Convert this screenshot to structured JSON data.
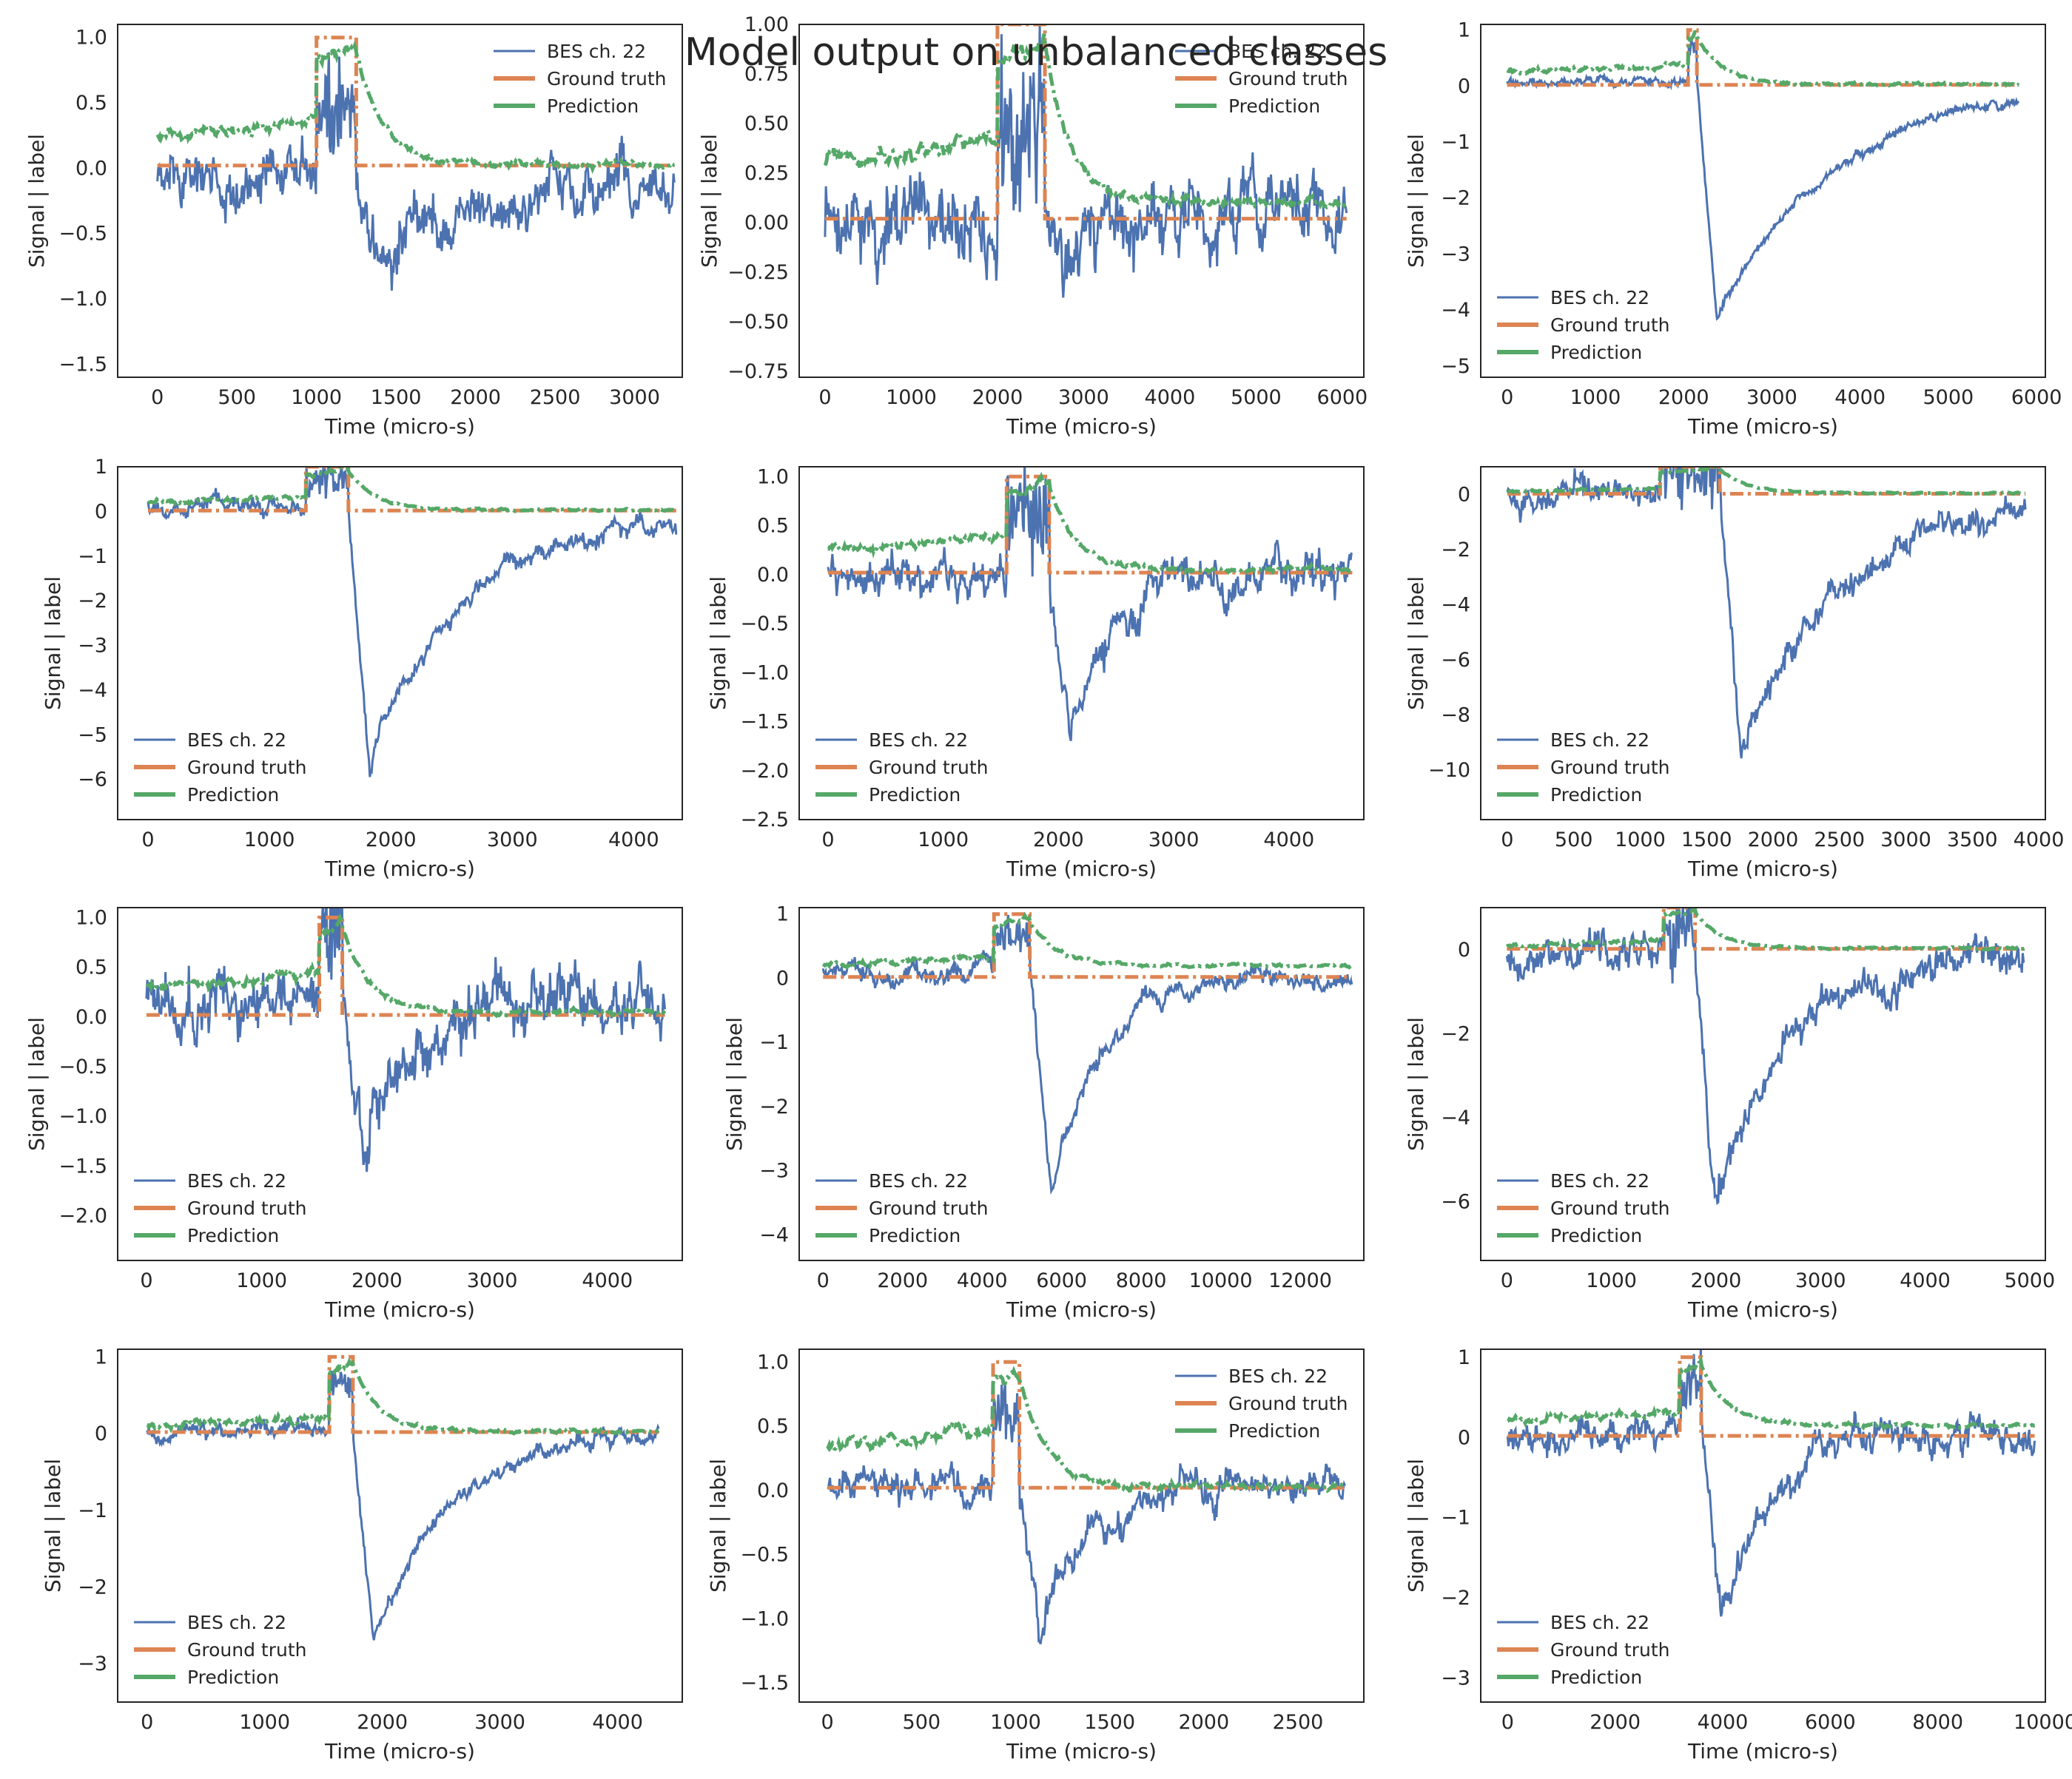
{
  "figure": {
    "title": "Model output on unbalanced classes"
  },
  "legend_labels": [
    "BES ch. 22",
    "Ground truth",
    "Prediction"
  ],
  "colors": {
    "signal": "#4c72b0",
    "ground_truth": "#dd8452",
    "prediction": "#55a868",
    "axes_edge": "#262626"
  },
  "chart_data": [
    {
      "type": "line",
      "xlabel": "Time (micro-s)",
      "ylabel": "Signal | label",
      "xlim": [
        -250,
        3300
      ],
      "ylim": [
        -1.6,
        1.1
      ],
      "xticks": [
        0,
        500,
        1000,
        1500,
        2000,
        2500,
        3000
      ],
      "yticks": [
        -1.5,
        -1.0,
        -0.5,
        0.0,
        0.5,
        1.0
      ],
      "ytick_decimals": 1,
      "legend_loc": "upper-right",
      "n_samples": 3250,
      "onset": [
        1000,
        1250
      ],
      "signal_baseline": -0.05,
      "signal_noise": 0.2,
      "signal_min": -0.8,
      "signal_recovery": 0.5,
      "prediction_baseline": 0.25,
      "prediction_tail": 0.03,
      "series": [
        {
          "name": "BES ch. 22",
          "style": "solid"
        },
        {
          "name": "Ground truth",
          "style": "dashdot"
        },
        {
          "name": "Prediction",
          "style": "dashdot"
        }
      ]
    },
    {
      "type": "line",
      "xlabel": "Time (micro-s)",
      "ylabel": "Signal | label",
      "xlim": [
        -300,
        6250
      ],
      "ylim": [
        -0.78,
        1.0
      ],
      "xticks": [
        0,
        1000,
        2000,
        3000,
        4000,
        5000,
        6000
      ],
      "yticks": [
        -0.75,
        -0.5,
        -0.25,
        0.0,
        0.25,
        0.5,
        0.75,
        1.0
      ],
      "ytick_decimals": 2,
      "legend_loc": "upper-right",
      "n_samples": 6050,
      "onset": [
        2000,
        2550
      ],
      "signal_baseline": 0.0,
      "signal_noise": 0.18,
      "signal_min": -0.2,
      "signal_recovery": 0.1,
      "prediction_baseline": 0.3,
      "prediction_tail": 0.1,
      "series": [
        {
          "name": "BES ch. 22",
          "style": "solid"
        },
        {
          "name": "Ground truth",
          "style": "dashdot"
        },
        {
          "name": "Prediction",
          "style": "dashdot"
        }
      ]
    },
    {
      "type": "line",
      "xlabel": "Time (micro-s)",
      "ylabel": "Signal | label",
      "xlim": [
        -300,
        6100
      ],
      "ylim": [
        -5.2,
        1.1
      ],
      "xticks": [
        0,
        1000,
        2000,
        3000,
        4000,
        5000,
        6000
      ],
      "yticks": [
        -5,
        -4,
        -3,
        -2,
        -1,
        0,
        1
      ],
      "ytick_decimals": 0,
      "legend_loc": "lower-left",
      "n_samples": 5800,
      "onset": [
        2050,
        2150
      ],
      "signal_baseline": 0.05,
      "signal_noise": 0.08,
      "signal_min": -4.2,
      "signal_recovery": 0.8,
      "prediction_baseline": 0.25,
      "prediction_tail": 0.03,
      "series": [
        {
          "name": "BES ch. 22",
          "style": "solid"
        },
        {
          "name": "Ground truth",
          "style": "dashdot"
        },
        {
          "name": "Prediction",
          "style": "dashdot"
        }
      ]
    },
    {
      "type": "line",
      "xlabel": "Time (micro-s)",
      "ylabel": "Signal | label",
      "xlim": [
        -250,
        4400
      ],
      "ylim": [
        -6.9,
        1.0
      ],
      "xticks": [
        0,
        1000,
        2000,
        3000,
        4000
      ],
      "yticks": [
        -6,
        -5,
        -4,
        -3,
        -2,
        -1,
        0,
        1
      ],
      "ytick_decimals": 0,
      "legend_loc": "lower-left",
      "n_samples": 4350,
      "onset": [
        1300,
        1650
      ],
      "signal_baseline": 0.05,
      "signal_noise": 0.2,
      "signal_min": -5.6,
      "signal_recovery": 0.65,
      "prediction_baseline": 0.2,
      "prediction_tail": 0.03,
      "series": [
        {
          "name": "BES ch. 22",
          "style": "solid"
        },
        {
          "name": "Ground truth",
          "style": "dashdot"
        },
        {
          "name": "Prediction",
          "style": "dashdot"
        }
      ]
    },
    {
      "type": "line",
      "xlabel": "Time (micro-s)",
      "ylabel": "Signal | label",
      "xlim": [
        -250,
        4650
      ],
      "ylim": [
        -2.5,
        1.1
      ],
      "xticks": [
        0,
        1000,
        2000,
        3000,
        4000
      ],
      "yticks": [
        -2.5,
        -2.0,
        -1.5,
        -1.0,
        -0.5,
        0.0,
        0.5,
        1.0
      ],
      "ytick_decimals": 1,
      "legend_loc": "lower-left",
      "n_samples": 4550,
      "onset": [
        1550,
        1920
      ],
      "signal_baseline": 0.05,
      "signal_noise": 0.2,
      "signal_min": -1.7,
      "signal_recovery": 0.3,
      "prediction_baseline": 0.25,
      "prediction_tail": 0.05,
      "series": [
        {
          "name": "BES ch. 22",
          "style": "solid"
        },
        {
          "name": "Ground truth",
          "style": "dashdot"
        },
        {
          "name": "Prediction",
          "style": "dashdot"
        }
      ]
    },
    {
      "type": "line",
      "xlabel": "Time (micro-s)",
      "ylabel": "Signal | label",
      "xlim": [
        -200,
        4050
      ],
      "ylim": [
        -11.8,
        1.0
      ],
      "xticks": [
        0,
        500,
        1000,
        1500,
        2000,
        2500,
        3000,
        3500,
        4000
      ],
      "yticks": [
        -10,
        -8,
        -6,
        -4,
        -2,
        0
      ],
      "ytick_decimals": 0,
      "legend_loc": "lower-left",
      "n_samples": 3900,
      "onset": [
        1150,
        1600
      ],
      "signal_baseline": 0.1,
      "signal_noise": 0.5,
      "signal_min": -9.5,
      "signal_recovery": 0.75,
      "prediction_baseline": 0.1,
      "prediction_tail": 0.05,
      "series": [
        {
          "name": "BES ch. 22",
          "style": "solid"
        },
        {
          "name": "Ground truth",
          "style": "dashdot"
        },
        {
          "name": "Prediction",
          "style": "dashdot"
        }
      ]
    },
    {
      "type": "line",
      "xlabel": "Time (micro-s)",
      "ylabel": "Signal | label",
      "xlim": [
        -250,
        4650
      ],
      "ylim": [
        -2.45,
        1.1
      ],
      "xticks": [
        0,
        1000,
        2000,
        3000,
        4000
      ],
      "yticks": [
        -2.0,
        -1.5,
        -1.0,
        -0.5,
        0.0,
        0.5,
        1.0
      ],
      "ytick_decimals": 1,
      "legend_loc": "lower-left",
      "n_samples": 4500,
      "onset": [
        1500,
        1700
      ],
      "signal_baseline": 0.1,
      "signal_noise": 0.3,
      "signal_min": -1.6,
      "signal_recovery": 0.25,
      "prediction_baseline": 0.3,
      "prediction_tail": 0.05,
      "series": [
        {
          "name": "BES ch. 22",
          "style": "solid"
        },
        {
          "name": "Ground truth",
          "style": "dashdot"
        },
        {
          "name": "Prediction",
          "style": "dashdot"
        }
      ]
    },
    {
      "type": "line",
      "xlabel": "Time (micro-s)",
      "ylabel": "Signal | label",
      "xlim": [
        -600,
        13600
      ],
      "ylim": [
        -4.4,
        1.1
      ],
      "xticks": [
        0,
        2000,
        4000,
        6000,
        8000,
        10000,
        12000
      ],
      "yticks": [
        -4,
        -3,
        -2,
        -1,
        0,
        1
      ],
      "ytick_decimals": 0,
      "legend_loc": "lower-left",
      "n_samples": 13300,
      "onset": [
        4300,
        5200
      ],
      "signal_baseline": 0.05,
      "signal_noise": 0.15,
      "signal_min": -3.3,
      "signal_recovery": 0.35,
      "prediction_baseline": 0.2,
      "prediction_tail": 0.2,
      "series": [
        {
          "name": "BES ch. 22",
          "style": "solid"
        },
        {
          "name": "Ground truth",
          "style": "dashdot"
        },
        {
          "name": "Prediction",
          "style": "dashdot"
        }
      ]
    },
    {
      "type": "line",
      "xlabel": "Time (micro-s)",
      "ylabel": "Signal | label",
      "xlim": [
        -250,
        5150
      ],
      "ylim": [
        -7.4,
        1.0
      ],
      "xticks": [
        0,
        1000,
        2000,
        3000,
        4000,
        5000
      ],
      "yticks": [
        -6,
        -4,
        -2,
        0
      ],
      "ytick_decimals": 0,
      "legend_loc": "lower-left",
      "n_samples": 4950,
      "onset": [
        1500,
        1800
      ],
      "signal_baseline": 0.0,
      "signal_noise": 0.4,
      "signal_min": -5.8,
      "signal_recovery": 0.5,
      "prediction_baseline": 0.1,
      "prediction_tail": 0.03,
      "series": [
        {
          "name": "BES ch. 22",
          "style": "solid"
        },
        {
          "name": "Ground truth",
          "style": "dashdot"
        },
        {
          "name": "Prediction",
          "style": "dashdot"
        }
      ]
    },
    {
      "type": "line",
      "xlabel": "Time (micro-s)",
      "ylabel": "Signal | label",
      "xlim": [
        -250,
        4550
      ],
      "ylim": [
        -3.5,
        1.1
      ],
      "xticks": [
        0,
        1000,
        2000,
        3000,
        4000
      ],
      "yticks": [
        -3,
        -2,
        -1,
        0,
        1
      ],
      "ytick_decimals": 0,
      "legend_loc": "lower-left",
      "n_samples": 4350,
      "onset": [
        1550,
        1750
      ],
      "signal_baseline": 0.05,
      "signal_noise": 0.1,
      "signal_min": -2.7,
      "signal_recovery": 0.55,
      "prediction_baseline": 0.1,
      "prediction_tail": 0.03,
      "series": [
        {
          "name": "BES ch. 22",
          "style": "solid"
        },
        {
          "name": "Ground truth",
          "style": "dashdot"
        },
        {
          "name": "Prediction",
          "style": "dashdot"
        }
      ]
    },
    {
      "type": "line",
      "xlabel": "Time (micro-s)",
      "ylabel": "Signal | label",
      "xlim": [
        -150,
        2850
      ],
      "ylim": [
        -1.65,
        1.1
      ],
      "xticks": [
        0,
        500,
        1000,
        1500,
        2000,
        2500
      ],
      "yticks": [
        -1.5,
        -1.0,
        -0.5,
        0.0,
        0.5,
        1.0
      ],
      "ytick_decimals": 1,
      "legend_loc": "upper-right",
      "n_samples": 2750,
      "onset": [
        880,
        1020
      ],
      "signal_baseline": 0.05,
      "signal_noise": 0.12,
      "signal_min": -1.0,
      "signal_recovery": 0.4,
      "prediction_baseline": 0.35,
      "prediction_tail": 0.03,
      "series": [
        {
          "name": "BES ch. 22",
          "style": "solid"
        },
        {
          "name": "Ground truth",
          "style": "dashdot"
        },
        {
          "name": "Prediction",
          "style": "dashdot"
        }
      ]
    },
    {
      "type": "line",
      "xlabel": "Time (micro-s)",
      "ylabel": "Signal | label",
      "xlim": [
        -500,
        10000
      ],
      "ylim": [
        -3.3,
        1.1
      ],
      "xticks": [
        0,
        2000,
        4000,
        6000,
        8000,
        10000
      ],
      "yticks": [
        -3,
        -2,
        -1,
        0,
        1
      ],
      "ytick_decimals": 0,
      "legend_loc": "lower-left",
      "n_samples": 9800,
      "onset": [
        3200,
        3600
      ],
      "signal_baseline": 0.0,
      "signal_noise": 0.2,
      "signal_min": -2.2,
      "signal_recovery": 0.3,
      "prediction_baseline": 0.2,
      "prediction_tail": 0.15,
      "series": [
        {
          "name": "BES ch. 22",
          "style": "solid"
        },
        {
          "name": "Ground truth",
          "style": "dashdot"
        },
        {
          "name": "Prediction",
          "style": "dashdot"
        }
      ]
    }
  ]
}
